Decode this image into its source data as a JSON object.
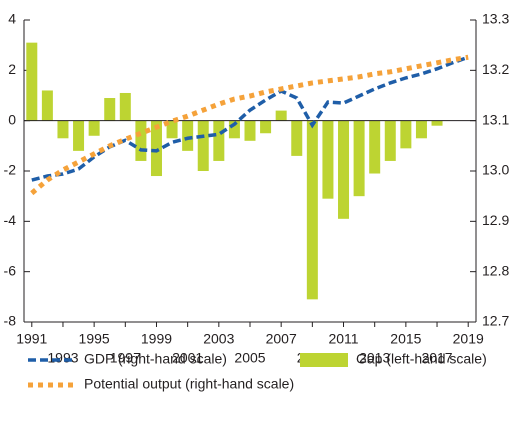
{
  "chart_data": {
    "type": "combo",
    "x": [
      1991,
      1992,
      1993,
      1994,
      1995,
      1996,
      1997,
      1998,
      1999,
      2000,
      2001,
      2002,
      2003,
      2004,
      2005,
      2006,
      2007,
      2008,
      2009,
      2010,
      2011,
      2012,
      2013,
      2014,
      2015,
      2016,
      2017,
      2018,
      2019
    ],
    "xlim": [
      1990.5,
      2019.5
    ],
    "xticks": [
      1991,
      1993,
      1995,
      1997,
      1999,
      2001,
      2003,
      2005,
      2007,
      2009,
      2011,
      2013,
      2015,
      2017,
      2019
    ],
    "ylim": [
      -8,
      4
    ],
    "yticks": [
      -8,
      -6,
      -4,
      -2,
      0,
      2,
      4
    ],
    "y2lim": [
      12.7,
      13.3
    ],
    "y2ticks": [
      12.7,
      12.8,
      12.9,
      {
        "value": 13,
        "label": "13.0"
      },
      13.1,
      13.2,
      13.3
    ],
    "series": [
      {
        "name": "GDP (right-hand scale)",
        "type": "line",
        "style": "dashed",
        "axis": "y2",
        "color": "#1f5ea8",
        "values": [
          12.982,
          12.99,
          12.994,
          13.004,
          13.028,
          13.048,
          13.061,
          13.042,
          13.04,
          13.057,
          13.065,
          13.069,
          13.073,
          13.093,
          13.121,
          13.141,
          13.159,
          13.145,
          13.091,
          13.137,
          13.135,
          13.149,
          13.163,
          13.175,
          13.185,
          13.193,
          13.203,
          13.215,
          13.226
        ]
      },
      {
        "name": "Gap (left-hand scale)",
        "type": "bar",
        "axis": "y",
        "color": "#bdd432",
        "values": [
          3.1,
          1.2,
          -0.7,
          -1.2,
          -0.6,
          0.9,
          1.1,
          -1.6,
          -2.2,
          -0.7,
          -1.2,
          -2.0,
          -1.6,
          -0.7,
          -0.8,
          -0.5,
          0.4,
          -1.4,
          -7.1,
          -3.1,
          -3.9,
          -3.0,
          -2.1,
          -1.6,
          -1.1,
          -0.7,
          -0.2,
          null,
          null
        ]
      },
      {
        "name": "Potential output (right-hand scale)",
        "type": "line",
        "style": "dotted",
        "axis": "y2",
        "color": "#f5a23a",
        "values": [
          12.956,
          12.982,
          13.002,
          13.018,
          13.034,
          13.05,
          13.063,
          13.075,
          13.087,
          13.099,
          13.109,
          13.121,
          13.133,
          13.143,
          13.149,
          13.157,
          13.163,
          13.169,
          13.175,
          13.179,
          13.183,
          13.187,
          13.193,
          13.197,
          13.203,
          13.209,
          13.215,
          13.221,
          13.226
        ]
      }
    ]
  }
}
